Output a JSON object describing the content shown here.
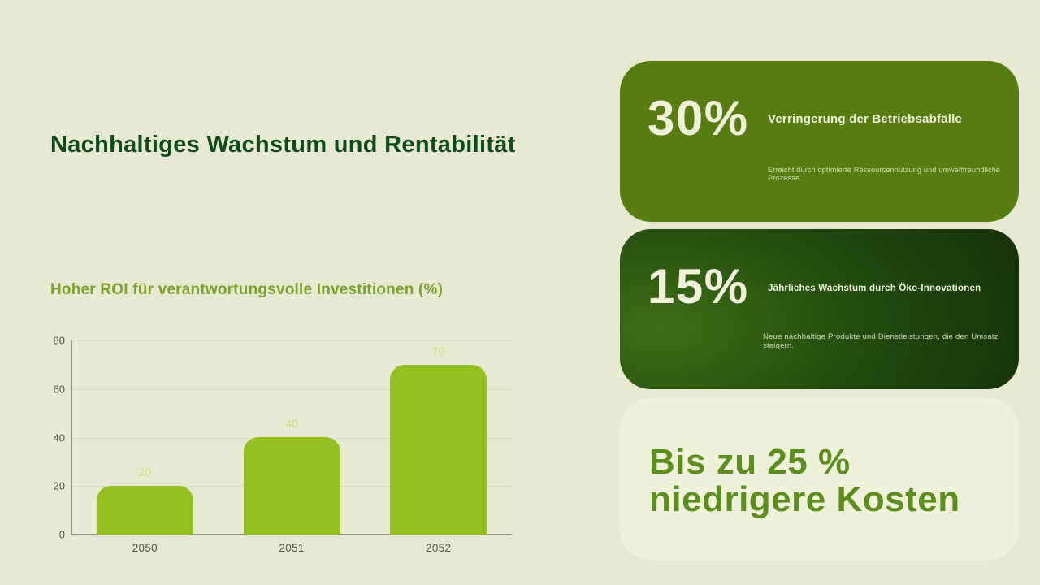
{
  "slide": {
    "background": "#e8e9d2",
    "title": "Nachhaltiges Wachstum und Rentabilität",
    "title_color": "#0d4b1d"
  },
  "chart_section": {
    "heading": "Hoher ROI für verantwortungsvolle Investitionen (%)",
    "heading_color": "#7aa22a"
  },
  "chart_data": {
    "type": "bar",
    "title": "Hoher ROI für verantwortungsvolle Investitionen (%)",
    "categories": [
      "2050",
      "2051",
      "2052"
    ],
    "values": [
      20,
      40,
      70
    ],
    "value_labels": [
      "20",
      "40",
      "70"
    ],
    "xlabel": "",
    "ylabel": "",
    "ylim": [
      0,
      80
    ],
    "yticks": [
      0,
      20,
      40,
      60,
      80
    ],
    "grid": true,
    "legend": false,
    "bar_color": "#93c01e",
    "value_label_color": "#cde07b",
    "tick_label_color": "#4d5646",
    "gridline_color": "#d8dac3",
    "axis_line_color": "#8f947e"
  },
  "stat_cards": [
    {
      "stat": "30%",
      "title": "Verringerung der Betriebsabfälle",
      "description": "Erreicht durch optimierte Ressourcennutzung und umweltfreundliche Prozesse.",
      "background": "#577c12",
      "text_color": "#eff1db"
    },
    {
      "stat": "15%",
      "title": "Jährliches Wachstum durch Öko-Innovationen",
      "description": "Neue nachhaltige Produkte und Dienstleistungen, die den Umsatz steigern.",
      "background": "radial-gradient(115% 160% at 10% 62%, #3f6e16 0%, #234a0e 45%, #112a07 100%)",
      "text_color": "#eff1db"
    }
  ],
  "highlight_card": {
    "line1": "Bis zu 25 %",
    "line2": "niedrigere Kosten",
    "background": "#eef2da",
    "text_color": "#5c8e1d"
  }
}
